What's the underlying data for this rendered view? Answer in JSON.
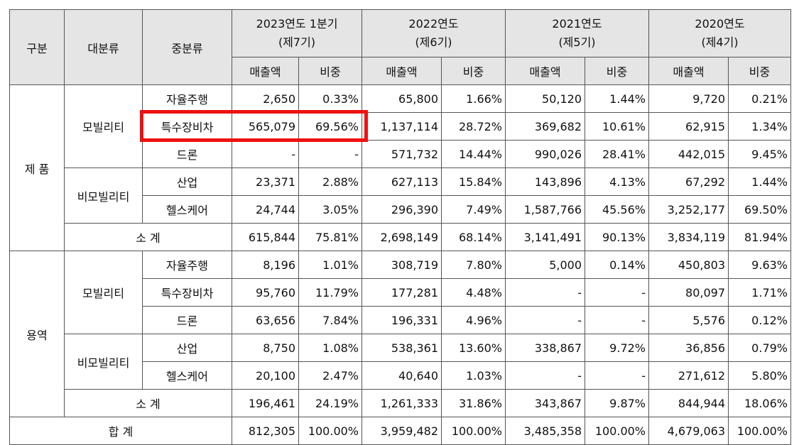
{
  "headers": {
    "gubun": "구분",
    "daebunryu": "대분류",
    "jungbunryu": "중분류",
    "periods": [
      {
        "title": "2023연도 1분기",
        "term": "(제7기)"
      },
      {
        "title": "2022연도",
        "term": "(제6기)"
      },
      {
        "title": "2021연도",
        "term": "(제5기)"
      },
      {
        "title": "2020연도",
        "term": "(제4기)"
      }
    ],
    "sales": "매출액",
    "ratio": "비중"
  },
  "sections": [
    {
      "name": "제 품",
      "groups": [
        {
          "name": "모빌리티",
          "rows": [
            {
              "label": "자율주행",
              "cells": [
                "2,650",
                "0.33%",
                "65,800",
                "1.66%",
                "50,120",
                "1.44%",
                "9,720",
                "0.21%"
              ]
            },
            {
              "label": "특수장비차",
              "cells": [
                "565,079",
                "69.56%",
                "1,137,114",
                "28.72%",
                "369,682",
                "10.61%",
                "62,915",
                "1.34%"
              ]
            },
            {
              "label": "드론",
              "cells": [
                "-",
                "-",
                "571,732",
                "14.44%",
                "990,026",
                "28.41%",
                "442,015",
                "9.45%"
              ]
            }
          ]
        },
        {
          "name": "비모빌리티",
          "rows": [
            {
              "label": "산업",
              "cells": [
                "23,371",
                "2.88%",
                "627,113",
                "15.84%",
                "143,896",
                "4.13%",
                "67,292",
                "1.44%"
              ]
            },
            {
              "label": "헬스케어",
              "cells": [
                "24,744",
                "3.05%",
                "296,390",
                "7.49%",
                "1,587,766",
                "45.56%",
                "3,252,177",
                "69.50%"
              ]
            }
          ]
        }
      ],
      "subtotal": {
        "label": "소 계",
        "cells": [
          "615,844",
          "75.81%",
          "2,698,149",
          "68.14%",
          "3,141,491",
          "90.13%",
          "3,834,119",
          "81.94%"
        ]
      }
    },
    {
      "name": "용역",
      "groups": [
        {
          "name": "모빌리티",
          "rows": [
            {
              "label": "자율주행",
              "cells": [
                "8,196",
                "1.01%",
                "308,719",
                "7.80%",
                "5,000",
                "0.14%",
                "450,803",
                "9.63%"
              ]
            },
            {
              "label": "특수장비차",
              "cells": [
                "95,760",
                "11.79%",
                "177,281",
                "4.48%",
                "-",
                "-",
                "80,097",
                "1.71%"
              ]
            },
            {
              "label": "드론",
              "cells": [
                "63,656",
                "7.84%",
                "196,331",
                "4.96%",
                "-",
                "-",
                "5,576",
                "0.12%"
              ]
            }
          ]
        },
        {
          "name": "비모빌리티",
          "rows": [
            {
              "label": "산업",
              "cells": [
                "8,750",
                "1.08%",
                "538,361",
                "13.60%",
                "338,867",
                "9.72%",
                "36,856",
                "0.79%"
              ]
            },
            {
              "label": "헬스케어",
              "cells": [
                "20,100",
                "2.47%",
                "40,640",
                "1.03%",
                "-",
                "-",
                "271,612",
                "5.80%"
              ]
            }
          ]
        }
      ],
      "subtotal": {
        "label": "소 계",
        "cells": [
          "196,461",
          "24.19%",
          "1,261,333",
          "31.86%",
          "343,867",
          "9.87%",
          "844,944",
          "18.06%"
        ]
      }
    }
  ],
  "total": {
    "label": "합 계",
    "cells": [
      "812,305",
      "100.00%",
      "3,959,482",
      "100.00%",
      "3,485,358",
      "100.00%",
      "4,679,063",
      "100.00%"
    ]
  },
  "highlight_color": "#ee1111"
}
